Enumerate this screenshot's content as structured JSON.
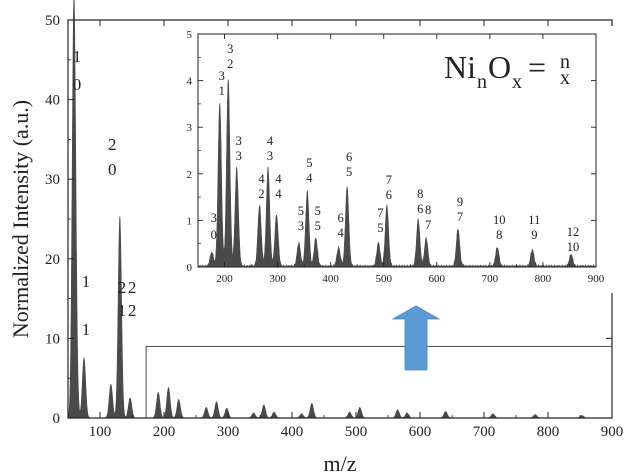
{
  "chart_data": [
    {
      "type": "area",
      "xlabel": "m/z",
      "ylabel": "Normalized Intensity (a.u.)",
      "xlim": [
        50,
        900
      ],
      "ylim": [
        0,
        50
      ],
      "xticks": [
        100,
        200,
        300,
        400,
        500,
        600,
        700,
        800,
        900
      ],
      "yticks": [
        0,
        10,
        20,
        30,
        40,
        50
      ],
      "grid": false,
      "series": [
        {
          "peaks": [
            {
              "x": 59,
              "y": 48.0
            },
            {
              "x": 62,
              "y": 9.5
            },
            {
              "x": 75,
              "y": 7.5
            },
            {
              "x": 117,
              "y": 4.2
            },
            {
              "x": 131,
              "y": 25.3
            },
            {
              "x": 147,
              "y": 2.5
            },
            {
              "x": 191,
              "y": 3.2
            },
            {
              "x": 207,
              "y": 3.8
            },
            {
              "x": 223,
              "y": 2.3
            },
            {
              "x": 266,
              "y": 1.3
            },
            {
              "x": 282,
              "y": 2.0
            },
            {
              "x": 298,
              "y": 1.2
            },
            {
              "x": 340,
              "y": 0.6
            },
            {
              "x": 356,
              "y": 1.6
            },
            {
              "x": 372,
              "y": 0.7
            },
            {
              "x": 415,
              "y": 0.5
            },
            {
              "x": 431,
              "y": 1.8
            },
            {
              "x": 490,
              "y": 0.7
            },
            {
              "x": 506,
              "y": 1.3
            },
            {
              "x": 565,
              "y": 1.0
            },
            {
              "x": 580,
              "y": 0.6
            },
            {
              "x": 640,
              "y": 0.8
            },
            {
              "x": 714,
              "y": 0.5
            },
            {
              "x": 780,
              "y": 0.4
            },
            {
              "x": 853,
              "y": 0.3
            }
          ]
        }
      ],
      "annotations": [
        {
          "n": "1",
          "x_sub": "0",
          "x": 61
        },
        {
          "n": "1",
          "x_sub": "1",
          "x": 75
        },
        {
          "n": "2",
          "x_sub": "0",
          "x": 116
        },
        {
          "n": "2",
          "x_sub": "1",
          "x": 131
        },
        {
          "n": "2",
          "x_sub": "2",
          "x": 147
        }
      ],
      "zoom_region": {
        "x": [
          172,
          900
        ],
        "y": [
          0,
          9
        ]
      }
    },
    {
      "type": "area",
      "inset": true,
      "xlim": [
        150,
        900
      ],
      "ylim": [
        0,
        5
      ],
      "xticks": [
        200,
        300,
        400,
        500,
        600,
        700,
        800,
        900
      ],
      "yticks": [
        0,
        1,
        2,
        3,
        4,
        5
      ],
      "grid": false,
      "formula": {
        "main1": "Ni",
        "sub1": "n",
        "main2": "O",
        "sub2": "x",
        "eq": "=",
        "frac_top": "n",
        "frac_bottom": "x"
      },
      "series": [
        {
          "peaks": [
            {
              "x": 176,
              "y": 0.3
            },
            {
              "x": 191,
              "y": 3.5
            },
            {
              "x": 207,
              "y": 4.0
            },
            {
              "x": 223,
              "y": 2.1
            },
            {
              "x": 266,
              "y": 1.3
            },
            {
              "x": 282,
              "y": 2.1
            },
            {
              "x": 298,
              "y": 1.1
            },
            {
              "x": 340,
              "y": 0.5
            },
            {
              "x": 356,
              "y": 1.6
            },
            {
              "x": 372,
              "y": 0.6
            },
            {
              "x": 415,
              "y": 0.4
            },
            {
              "x": 431,
              "y": 1.7
            },
            {
              "x": 490,
              "y": 0.5
            },
            {
              "x": 506,
              "y": 1.3
            },
            {
              "x": 565,
              "y": 1.0
            },
            {
              "x": 580,
              "y": 0.6
            },
            {
              "x": 640,
              "y": 0.8
            },
            {
              "x": 714,
              "y": 0.4
            },
            {
              "x": 780,
              "y": 0.35
            },
            {
              "x": 853,
              "y": 0.25
            }
          ]
        }
      ],
      "annotations": [
        {
          "n": "3",
          "x_sub": "0",
          "x": 176
        },
        {
          "n": "3",
          "x_sub": "1",
          "x": 191
        },
        {
          "n": "3",
          "x_sub": "2",
          "x": 207
        },
        {
          "n": "3",
          "x_sub": "3",
          "x": 223
        },
        {
          "n": "4",
          "x_sub": "2",
          "x": 266
        },
        {
          "n": "4",
          "x_sub": "3",
          "x": 282
        },
        {
          "n": "4",
          "x_sub": "4",
          "x": 298
        },
        {
          "n": "5",
          "x_sub": "3",
          "x": 340
        },
        {
          "n": "5",
          "x_sub": "4",
          "x": 356
        },
        {
          "n": "5",
          "x_sub": "5",
          "x": 372
        },
        {
          "n": "6",
          "x_sub": "4",
          "x": 415
        },
        {
          "n": "6",
          "x_sub": "5",
          "x": 431
        },
        {
          "n": "7",
          "x_sub": "5",
          "x": 490
        },
        {
          "n": "7",
          "x_sub": "6",
          "x": 506
        },
        {
          "n": "8",
          "x_sub": "6",
          "x": 565
        },
        {
          "n": "8",
          "x_sub": "7",
          "x": 580
        },
        {
          "n": "9",
          "x_sub": "7",
          "x": 640
        },
        {
          "n": "10",
          "x_sub": "8",
          "x": 714
        },
        {
          "n": "11",
          "x_sub": "9",
          "x": 780
        },
        {
          "n": "12",
          "x_sub": "10",
          "x": 853
        }
      ]
    }
  ],
  "colors": {
    "fill": "#4a4a4a",
    "axis": "#222222",
    "arrow": "#5b9bd5"
  }
}
